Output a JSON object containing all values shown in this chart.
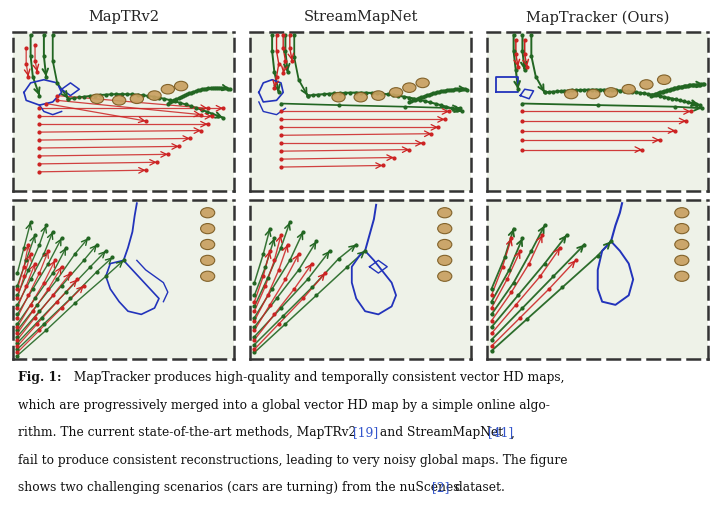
{
  "title_row": [
    "MapTRv2",
    "StreamMapNet",
    "MapTracker (Ours)"
  ],
  "fig_caption_bold": "Fig. 1:",
  "fig_caption_text": " MapTracker produces high-quality and temporally consistent vector HD maps,\nwhich are progressively merged into a global vector HD map by a simple online algo-\nrithm. The current state-of-the-art methods, MapTRv2 [19] and StreamMapNet [41],\nfail to produce consistent reconstructions, leading to very noisy global maps. The figure\nshows two challenging scenarios (cars are turning) from the nuScenes [2] dataset.",
  "bg_color": "#ffffff",
  "panel_bg": "#eef2e8",
  "colors": {
    "red": "#cc2222",
    "green": "#226622",
    "blue": "#2233bb",
    "tan": "#c8a060",
    "tan_dark": "#7a5a20"
  },
  "ref_color": "#3355cc"
}
